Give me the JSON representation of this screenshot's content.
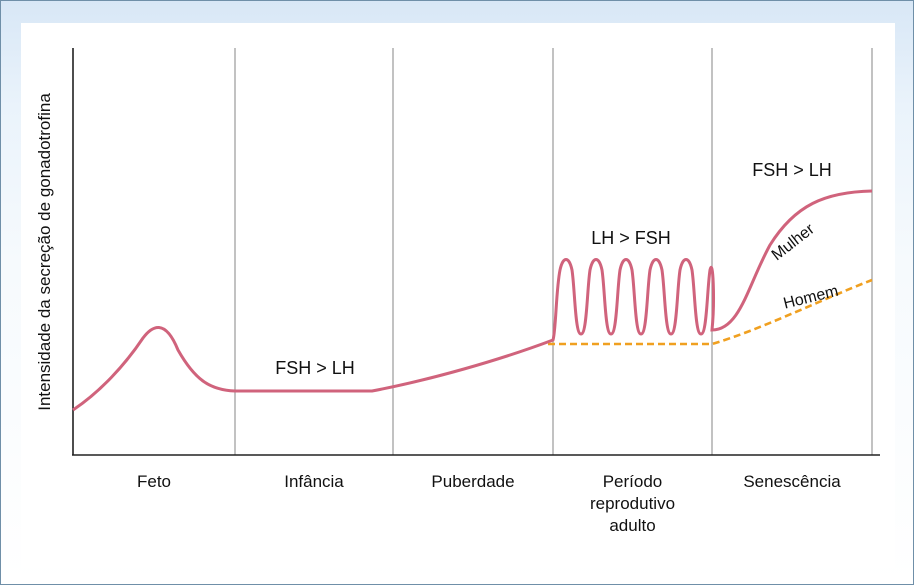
{
  "colors": {
    "woman_curve": "#d0637c",
    "man_curve": "#f0a020",
    "axis": "#222222",
    "divider": "#9a9a9a",
    "frame_border": "#6f8fa8"
  },
  "y_axis_label": "Intensidade da secreção de gonadotrofina",
  "periods": [
    {
      "lines": [
        "Feto"
      ]
    },
    {
      "lines": [
        "Infância"
      ]
    },
    {
      "lines": [
        "Puberdade"
      ]
    },
    {
      "lines": [
        "Período",
        "reprodutivo",
        "adulto"
      ]
    },
    {
      "lines": [
        "Senescência"
      ]
    }
  ],
  "annotations": {
    "infancy_ratio": "FSH > LH",
    "adult_ratio": "LH > FSH",
    "senescence_ratio": "FSH > LH"
  },
  "curve_labels": {
    "woman": "Mulher",
    "man": "Homem"
  }
}
